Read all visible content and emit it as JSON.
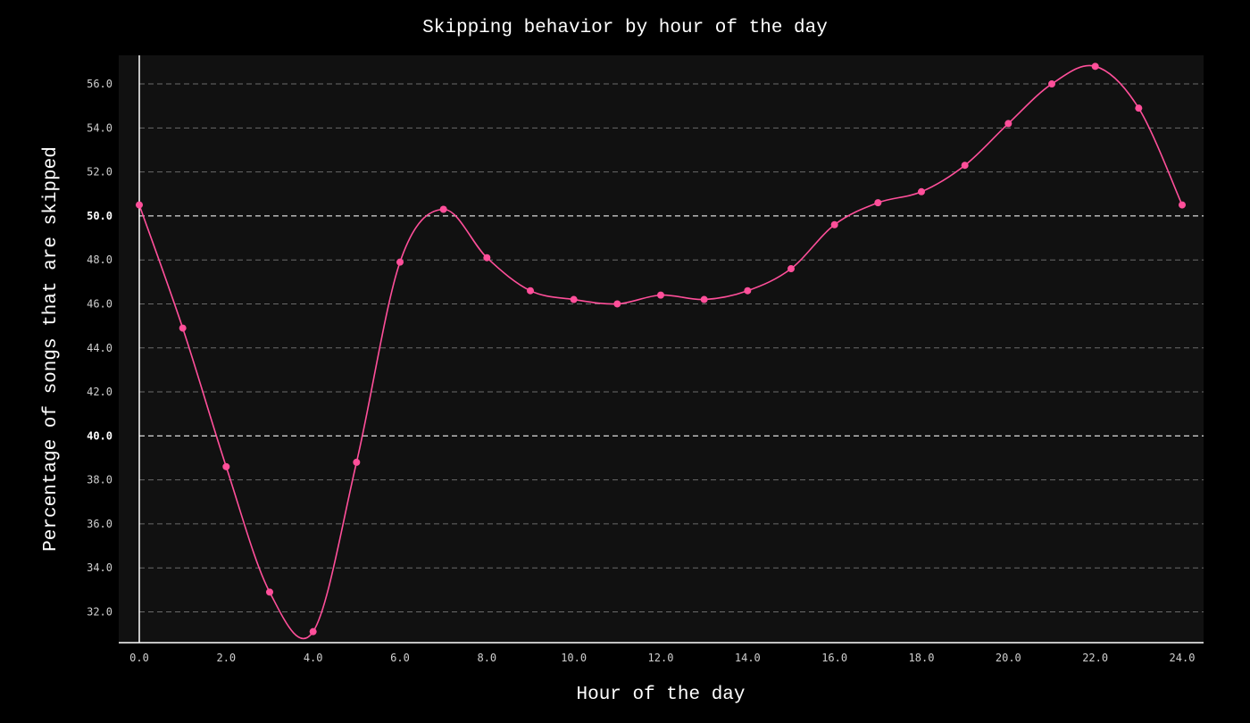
{
  "colors": {
    "background": "#000000",
    "plot_background": "#111111",
    "grid": "#6a6a6a",
    "grid_emphasis": "#d9d9d9",
    "axis": "#ffffff",
    "series": "#ff4f9a"
  },
  "chart_data": {
    "type": "line",
    "title": "Skipping behavior by hour of the day",
    "xlabel": "Hour of the day",
    "ylabel": "Percentage of songs that are skipped",
    "xlim": [
      0,
      24
    ],
    "ylim": [
      30.6,
      57.3
    ],
    "grid": true,
    "grid_style": "dashed-horizontal",
    "emphasized_gridlines": [
      40.0,
      50.0
    ],
    "x_ticks": [
      0,
      2,
      4,
      6,
      8,
      10,
      12,
      14,
      16,
      18,
      20,
      22,
      24
    ],
    "x_tick_labels": [
      "0.0",
      "2.0",
      "4.0",
      "6.0",
      "8.0",
      "10.0",
      "12.0",
      "14.0",
      "16.0",
      "18.0",
      "20.0",
      "22.0",
      "24.0"
    ],
    "y_ticks": [
      32,
      34,
      36,
      38,
      40,
      42,
      44,
      46,
      48,
      50,
      52,
      54,
      56
    ],
    "y_tick_labels": [
      "32.0",
      "34.0",
      "36.0",
      "38.0",
      "40.0",
      "42.0",
      "44.0",
      "46.0",
      "48.0",
      "50.0",
      "52.0",
      "54.0",
      "56.0"
    ],
    "series": [
      {
        "x": [
          0,
          1,
          2,
          3,
          4,
          5,
          6,
          7,
          8,
          9,
          10,
          11,
          12,
          13,
          14,
          15,
          16,
          17,
          18,
          19,
          20,
          21,
          22,
          23,
          24
        ],
        "values": [
          50.5,
          44.9,
          38.6,
          32.9,
          31.1,
          38.8,
          47.9,
          50.3,
          48.1,
          46.6,
          46.2,
          46.0,
          46.4,
          46.2,
          46.6,
          47.6,
          49.6,
          50.6,
          51.1,
          52.3,
          54.2,
          56.0,
          56.8,
          54.9,
          50.5
        ],
        "smooth": true,
        "markers": true
      }
    ]
  }
}
